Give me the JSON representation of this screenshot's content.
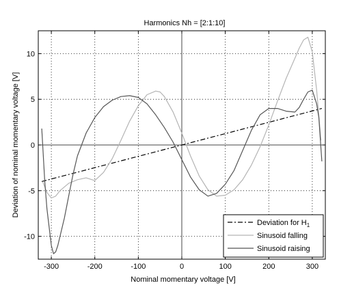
{
  "chart_data": {
    "type": "line",
    "title": "Harmonics Nh = [2:1:10]",
    "xlabel": "Nominal momentary voltage [V]",
    "ylabel": "Deviation of nominal momentary voltage [V]",
    "xlim": [
      -330,
      330
    ],
    "ylim": [
      -12.5,
      12.5
    ],
    "xticks": [
      -300,
      -200,
      -100,
      0,
      100,
      200,
      300
    ],
    "yticks": [
      -10,
      -5,
      0,
      5,
      10
    ],
    "grid": true,
    "legend_position": "bottom-right",
    "series": [
      {
        "name": "Deviation for H",
        "name_subscript": "1",
        "style": "dash-dot",
        "color": "#000000",
        "x": [
          -322,
          322
        ],
        "y": [
          -4.0,
          4.0
        ]
      },
      {
        "name": "Sinusoid falling",
        "style": "solid",
        "color": "#b4b4b4",
        "x": [
          -320,
          -310,
          -300,
          -290,
          -280,
          -260,
          -240,
          -220,
          -200,
          -180,
          -160,
          -140,
          -120,
          -100,
          -80,
          -60,
          -50,
          -40,
          -20,
          0,
          20,
          40,
          60,
          80,
          100,
          120,
          140,
          160,
          180,
          200,
          220,
          240,
          260,
          270,
          280,
          290,
          300,
          310,
          320
        ],
        "y": [
          -4.0,
          -5.2,
          -5.8,
          -5.6,
          -5.0,
          -4.2,
          -3.8,
          -3.6,
          -3.9,
          -3.0,
          -1.5,
          0.5,
          2.6,
          4.3,
          5.5,
          5.9,
          5.8,
          5.3,
          3.6,
          1.3,
          -1.2,
          -3.4,
          -4.9,
          -5.6,
          -5.5,
          -4.9,
          -3.8,
          -2.2,
          -0.2,
          2.2,
          4.8,
          7.3,
          9.5,
          10.6,
          11.5,
          11.8,
          10.2,
          6.0,
          0.5
        ]
      },
      {
        "name": "Sinusoid raising",
        "style": "solid",
        "color": "#555555",
        "x": [
          -322,
          -315,
          -310,
          -300,
          -295,
          -290,
          -285,
          -280,
          -270,
          -260,
          -250,
          -240,
          -220,
          -200,
          -180,
          -160,
          -140,
          -120,
          -100,
          -80,
          -60,
          -40,
          -20,
          0,
          20,
          40,
          60,
          80,
          100,
          120,
          140,
          160,
          180,
          200,
          220,
          240,
          260,
          270,
          280,
          290,
          300,
          310,
          315,
          322
        ],
        "y": [
          1.8,
          -4.0,
          -7.0,
          -11.0,
          -11.9,
          -11.7,
          -11.0,
          -10.0,
          -8.0,
          -5.6,
          -3.2,
          -1.2,
          1.3,
          3.0,
          4.2,
          4.9,
          5.3,
          5.4,
          5.2,
          4.5,
          3.3,
          1.9,
          0.3,
          -1.6,
          -3.5,
          -4.9,
          -5.6,
          -5.3,
          -4.3,
          -2.8,
          -0.6,
          1.6,
          3.3,
          4.0,
          4.0,
          3.7,
          3.6,
          4.1,
          5.0,
          5.8,
          6.0,
          4.5,
          3.0,
          -1.8
        ]
      }
    ]
  }
}
